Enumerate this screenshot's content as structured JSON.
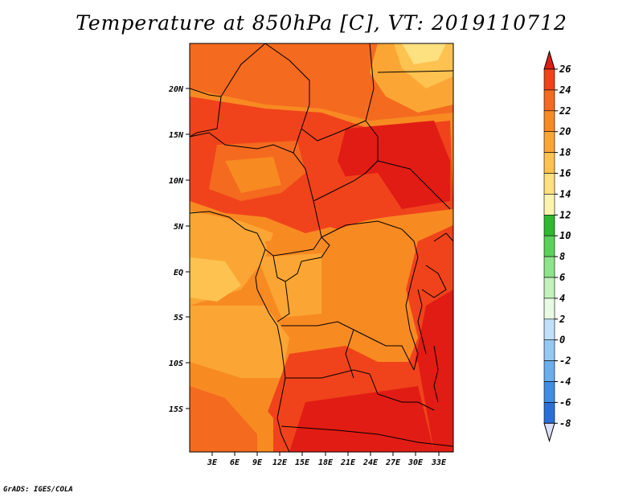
{
  "title": "Temperature at 850hPa [C], VT: 2019110712",
  "credit": "GrADS: IGES/COLA",
  "lat_labels": [
    "20N",
    "15N",
    "10N",
    "5N",
    "EQ",
    "5S",
    "10S",
    "15S"
  ],
  "lon_labels": [
    "3E",
    "6E",
    "9E",
    "12E",
    "15E",
    "18E",
    "21E",
    "24E",
    "27E",
    "30E",
    "33E"
  ],
  "colorbar": {
    "levels": [
      "26",
      "24",
      "22",
      "20",
      "18",
      "16",
      "14",
      "12",
      "10",
      "8",
      "6",
      "4",
      "2",
      "0",
      "-2",
      "-4",
      "-6",
      "-8"
    ],
    "colors": [
      "#e11c14",
      "#f0431b",
      "#f46a1f",
      "#f88a22",
      "#fba634",
      "#fdc24f",
      "#fde07f",
      "#fbf4b0",
      "#2fb830",
      "#5ad25a",
      "#8ee48a",
      "#c2f2bc",
      "#e8fae4",
      "#bfe0f8",
      "#97c8f2",
      "#6aaeec",
      "#3f8ee4",
      "#2a6fd8",
      "#1a4fc4",
      "#0c2c98",
      "#dde0fa"
    ]
  }
}
